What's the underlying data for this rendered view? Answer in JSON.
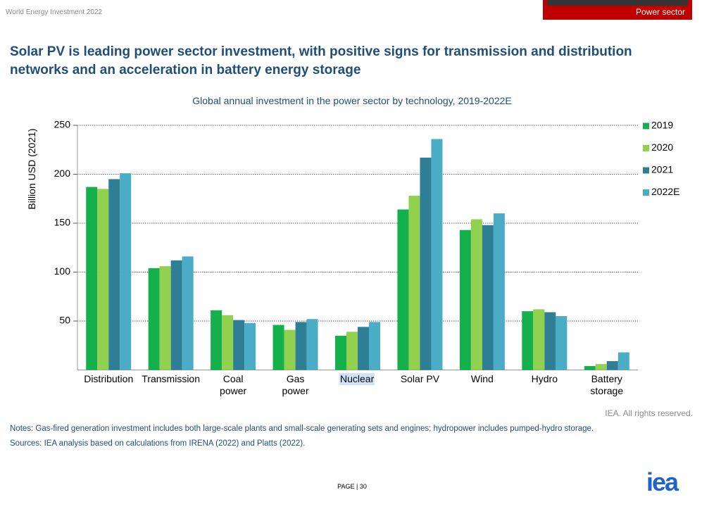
{
  "header": {
    "report": "World Energy Investment 2022",
    "section": "Power sector"
  },
  "title": "Solar PV is leading power sector investment, with positive signs for transmission and distribution networks and an acceleration in battery energy storage",
  "chart_data": {
    "type": "bar",
    "title": "Global annual investment in the power sector by technology, 2019-2022E",
    "y_label": "Billion USD (2021)",
    "categories": [
      "Distribution",
      "Transmission",
      "Coal\npower",
      "Gas\npower",
      "Nuclear",
      "Solar PV",
      "Wind",
      "Hydro",
      "Battery\nstorage"
    ],
    "series": [
      {
        "name": "2019",
        "color": "#14b04c",
        "values": [
          187,
          104,
          61,
          46,
          35,
          164,
          143,
          60,
          4
        ]
      },
      {
        "name": "2020",
        "color": "#92d050",
        "values": [
          185,
          106,
          56,
          41,
          39,
          178,
          154,
          62,
          6
        ]
      },
      {
        "name": "2021",
        "color": "#2e7f96",
        "values": [
          195,
          112,
          51,
          49,
          44,
          217,
          148,
          59,
          9
        ]
      },
      {
        "name": "2022E",
        "color": "#4bacc6",
        "values": [
          201,
          116,
          48,
          52,
          49,
          236,
          160,
          55,
          18
        ]
      }
    ],
    "ylim": [
      0,
      250
    ],
    "yticks": [
      50,
      100,
      150,
      200,
      250
    ],
    "grid": true,
    "legend": "right"
  },
  "rights": "IEA. All rights reserved.",
  "notes": "Notes: Gas-fired generation investment includes both large-scale plants and small-scale generating sets and engines; hydropower includes pumped-hydro storage.",
  "sources": "Sources: IEA analysis based on calculations from IRENA (2022) and Platts (2022).",
  "page": "PAGE | 30",
  "logo": "iea"
}
